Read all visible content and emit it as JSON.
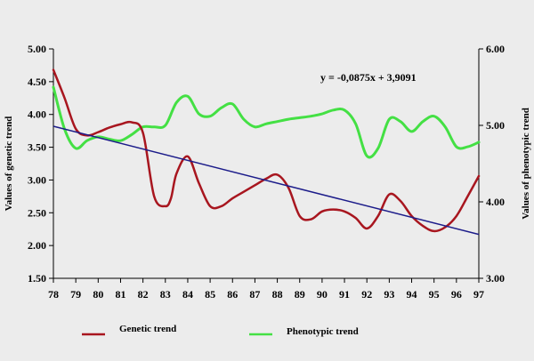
{
  "chart_data": {
    "type": "line",
    "x": [
      "78",
      "79",
      "80",
      "81",
      "82",
      "83",
      "84",
      "85",
      "86",
      "87",
      "88",
      "89",
      "90",
      "91",
      "92",
      "93",
      "94",
      "95",
      "96",
      "97"
    ],
    "xlabel": "",
    "ylabel": "Values of genetic trend",
    "y2label": "Values of phenotypic trend",
    "ylim": [
      1.5,
      5.0
    ],
    "yticks": [
      "1.50",
      "2.00",
      "2.50",
      "3.00",
      "3.50",
      "4.00",
      "4.50",
      "5.00"
    ],
    "y2lim": [
      3.0,
      6.0
    ],
    "y2ticks": [
      "3.00",
      "4.00",
      "5.00",
      "6.00"
    ],
    "grid": false,
    "legend_position": "bottom",
    "series": [
      {
        "name": "Genetic trend",
        "axis": "left",
        "color": "#a8161f",
        "x": [
          78,
          78.5,
          79,
          79.5,
          80,
          80.5,
          81,
          81.5,
          82,
          82.5,
          83,
          83.25,
          83.5,
          84,
          84.5,
          85,
          85.5,
          86,
          86.5,
          87,
          87.5,
          88,
          88.5,
          89,
          89.5,
          90,
          90.5,
          91,
          91.5,
          92,
          92.5,
          93,
          93.5,
          94,
          94.5,
          95,
          95.5,
          96,
          96.5,
          97
        ],
        "values": [
          4.68,
          4.25,
          3.78,
          3.68,
          3.73,
          3.8,
          3.85,
          3.88,
          3.72,
          2.75,
          2.6,
          2.72,
          3.1,
          3.36,
          2.95,
          2.6,
          2.6,
          2.72,
          2.82,
          2.92,
          3.02,
          3.08,
          2.88,
          2.45,
          2.4,
          2.52,
          2.55,
          2.52,
          2.42,
          2.26,
          2.45,
          2.78,
          2.68,
          2.45,
          2.3,
          2.22,
          2.28,
          2.45,
          2.75,
          3.06
        ]
      },
      {
        "name": "Phenotypic trend",
        "axis": "right",
        "color": "#44e044",
        "x": [
          78,
          78.5,
          79,
          79.5,
          80,
          80.5,
          81,
          81.5,
          82,
          82.5,
          83,
          83.5,
          84,
          84.5,
          85,
          85.5,
          86,
          86.5,
          87,
          87.5,
          88,
          88.5,
          89,
          89.5,
          90,
          90.5,
          91,
          91.5,
          92,
          92.5,
          93,
          93.5,
          94,
          94.5,
          95,
          95.5,
          96,
          96.5,
          97
        ],
        "values": [
          5.5,
          4.95,
          4.7,
          4.8,
          4.85,
          4.82,
          4.8,
          4.88,
          4.98,
          4.98,
          5.0,
          5.3,
          5.38,
          5.15,
          5.12,
          5.23,
          5.28,
          5.08,
          4.98,
          5.02,
          5.05,
          5.08,
          5.1,
          5.12,
          5.15,
          5.2,
          5.2,
          5.02,
          4.6,
          4.7,
          5.08,
          5.05,
          4.92,
          5.05,
          5.12,
          4.98,
          4.72,
          4.72,
          4.78
        ]
      }
    ],
    "trendline": {
      "axis": "left",
      "color": "#1c1c8a",
      "x": [
        78,
        97
      ],
      "values": [
        3.82,
        2.17
      ],
      "equation": "y = -0,0875x + 3,9091"
    }
  }
}
